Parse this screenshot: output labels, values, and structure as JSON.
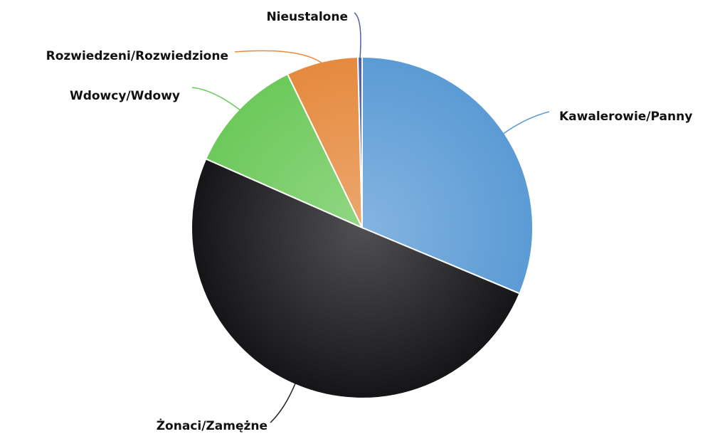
{
  "chart_data": {
    "type": "pie",
    "title": "",
    "slices": [
      {
        "label": "Kawalerowie/Panny",
        "value": 31.3,
        "color": "#5b9bd5"
      },
      {
        "label": "Żonaci/Zamężne",
        "value": 50.3,
        "color": "#151518"
      },
      {
        "label": "Wdowcy/Wdowy",
        "value": 11.2,
        "color": "#6cc95a"
      },
      {
        "label": "Rozwiedzeni/Rozwiedzione",
        "value": 6.8,
        "color": "#e58a3e"
      },
      {
        "label": "Nieustalone",
        "value": 0.4,
        "color": "#4a5fa8"
      }
    ],
    "start": "top",
    "direction": "clockwise",
    "labels": "outside, with leader lines",
    "legend": "none"
  }
}
